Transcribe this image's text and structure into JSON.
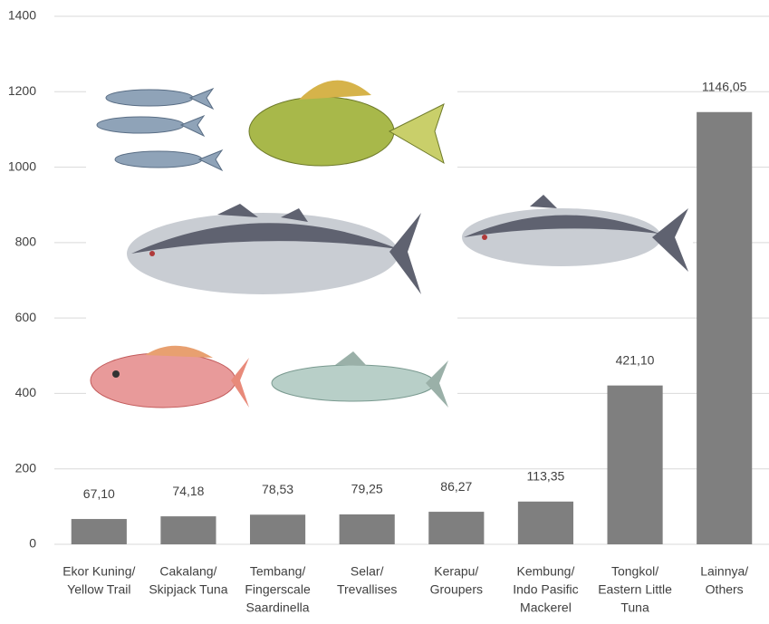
{
  "chart_data": {
    "type": "bar",
    "categories": [
      [
        "Ekor Kuning/",
        "Yellow Trail"
      ],
      [
        "Cakalang/",
        "Skipjack Tuna"
      ],
      [
        "Tembang/",
        "Fingerscale",
        "Saardinella"
      ],
      [
        "Selar/",
        "Trevallises"
      ],
      [
        "Kerapu/",
        "Groupers"
      ],
      [
        "Kembung/",
        "Indo Pasific",
        "Mackerel"
      ],
      [
        "Tongkol/",
        "Eastern Little",
        "Tuna"
      ],
      [
        "Lainnya/",
        "Others"
      ]
    ],
    "values": [
      67.1,
      74.18,
      78.53,
      79.25,
      86.27,
      113.35,
      421.1,
      1146.05
    ],
    "value_labels": [
      "67,10",
      "74,18",
      "78,53",
      "79,25",
      "86,27",
      "113,35",
      "421,10",
      "1146,05"
    ],
    "color": "#7f7f7f",
    "ylim": [
      0,
      1400
    ],
    "yticks": [
      0,
      200,
      400,
      600,
      800,
      1000,
      1200,
      1400
    ],
    "grid": true
  }
}
